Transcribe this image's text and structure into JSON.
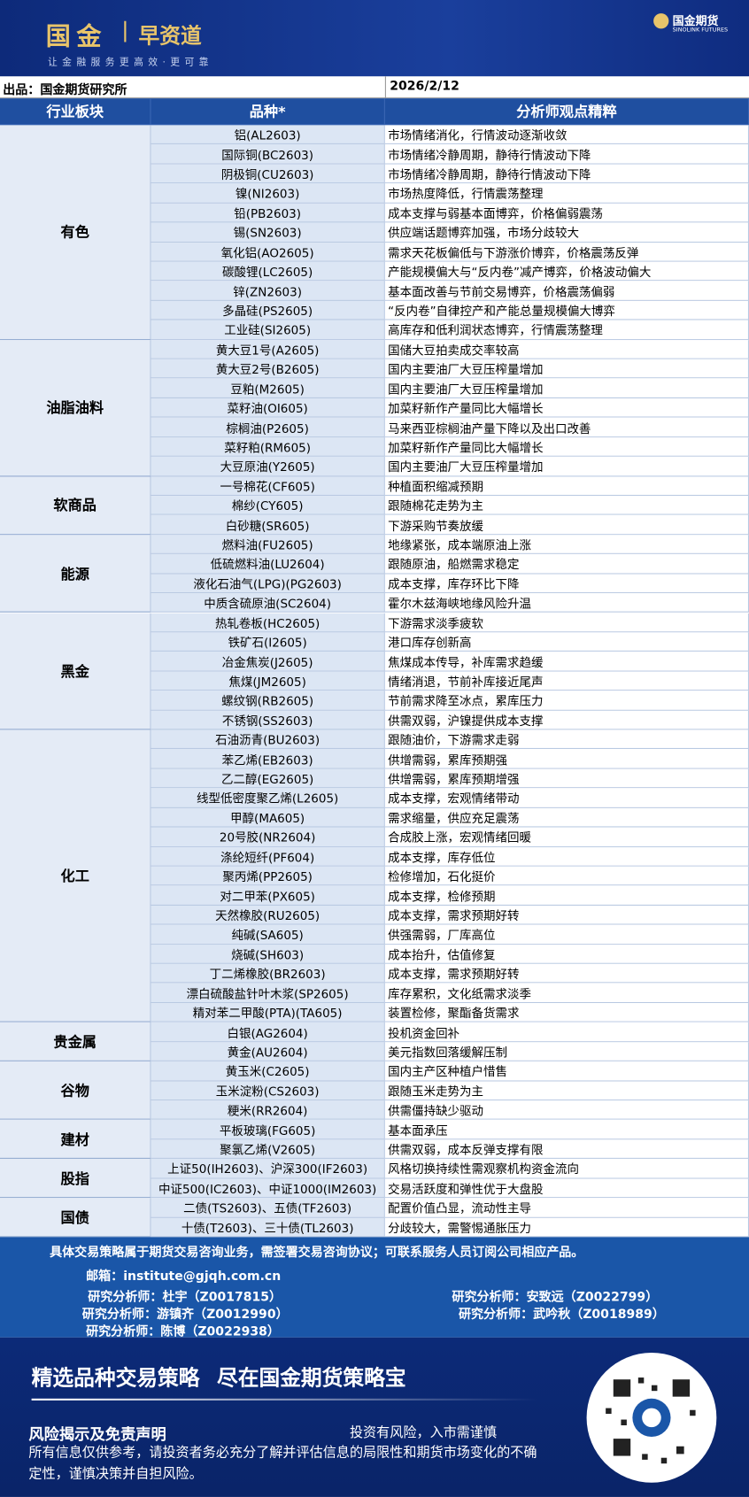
{
  "header": {
    "logo": "国金",
    "product": "早资道",
    "slogan": "让金融服务更高效·更可靠",
    "brand": "国金期货",
    "brand_en": "SINOLINK FUTURES"
  },
  "meta": {
    "producer": "出品：国金期货研究所",
    "date": "2026/2/12"
  },
  "table": {
    "columns": [
      "行业板块",
      "品种*",
      "分析师观点精粹"
    ],
    "groups": [
      {
        "sector": "有色",
        "rows": [
          [
            "铝(AL2603)",
            "市场情绪消化，行情波动逐渐收敛"
          ],
          [
            "国际铜(BC2603)",
            "市场情绪冷静周期，静待行情波动下降"
          ],
          [
            "阴极铜(CU2603)",
            "市场情绪冷静周期，静待行情波动下降"
          ],
          [
            "镍(NI2603)",
            "市场热度降低，行情震荡整理"
          ],
          [
            "铅(PB2603)",
            "成本支撑与弱基本面博弈，价格偏弱震荡"
          ],
          [
            "锡(SN2603)",
            "供应端话题博弈加强，市场分歧较大"
          ],
          [
            "氧化铝(AO2605)",
            "需求天花板偏低与下游涨价博弈，价格震荡反弹"
          ],
          [
            "碳酸锂(LC2605)",
            "产能规模偏大与“反内卷”减产博弈，价格波动偏大"
          ],
          [
            "锌(ZN2603)",
            "基本面改善与节前交易博弈，价格震荡偏弱"
          ],
          [
            "多晶硅(PS2605)",
            "“反内卷”自律控产和产能总量规模偏大博弈"
          ],
          [
            "工业硅(SI2605)",
            "高库存和低利润状态博弈，行情震荡整理"
          ]
        ]
      },
      {
        "sector": "油脂油料",
        "rows": [
          [
            "黄大豆1号(A2605)",
            "国储大豆拍卖成交率较高"
          ],
          [
            "黄大豆2号(B2605)",
            "国内主要油厂大豆压榨量增加"
          ],
          [
            "豆粕(M2605)",
            "国内主要油厂大豆压榨量增加"
          ],
          [
            "菜籽油(OI605)",
            "加菜籽新作产量同比大幅增长"
          ],
          [
            "棕榈油(P2605)",
            "马来西亚棕榈油产量下降以及出口改善"
          ],
          [
            "菜籽粕(RM605)",
            "加菜籽新作产量同比大幅增长"
          ],
          [
            "大豆原油(Y2605)",
            "国内主要油厂大豆压榨量增加"
          ]
        ]
      },
      {
        "sector": "软商品",
        "rows": [
          [
            "一号棉花(CF605)",
            "种植面积缩减预期"
          ],
          [
            "棉纱(CY605)",
            "跟随棉花走势为主"
          ],
          [
            "白砂糖(SR605)",
            "下游采购节奏放缓"
          ]
        ]
      },
      {
        "sector": "能源",
        "rows": [
          [
            "燃料油(FU2605)",
            "地缘紧张，成本端原油上涨"
          ],
          [
            "低硫燃料油(LU2604)",
            "跟随原油，船燃需求稳定"
          ],
          [
            "液化石油气(LPG)(PG2603)",
            "成本支撑，库存环比下降"
          ],
          [
            "中质含硫原油(SC2604)",
            "霍尔木兹海峡地缘风险升温"
          ]
        ]
      },
      {
        "sector": "黑金",
        "rows": [
          [
            "热轧卷板(HC2605)",
            "下游需求淡季疲软"
          ],
          [
            "铁矿石(I2605)",
            "港口库存创新高"
          ],
          [
            "冶金焦炭(J2605)",
            "焦煤成本传导，补库需求趋缓"
          ],
          [
            "焦煤(JM2605)",
            "情绪消退，节前补库接近尾声"
          ],
          [
            "螺纹钢(RB2605)",
            "节前需求降至冰点，累库压力"
          ],
          [
            "不锈钢(SS2603)",
            "供需双弱，沪镍提供成本支撑"
          ]
        ]
      },
      {
        "sector": "化工",
        "rows": [
          [
            "石油沥青(BU2603)",
            "跟随油价，下游需求走弱"
          ],
          [
            "苯乙烯(EB2603)",
            "供增需弱，累库预期强"
          ],
          [
            "乙二醇(EG2605)",
            "供增需弱，累库预期增强"
          ],
          [
            "线型低密度聚乙烯(L2605)",
            "成本支撑，宏观情绪带动"
          ],
          [
            "甲醇(MA605)",
            "需求缩量，供应充足震荡"
          ],
          [
            "20号胶(NR2604)",
            "合成胶上涨，宏观情绪回暖"
          ],
          [
            "涤纶短纤(PF604)",
            "成本支撑，库存低位"
          ],
          [
            "聚丙烯(PP2605)",
            "检修增加，石化挺价"
          ],
          [
            "对二甲苯(PX605)",
            "成本支撑，检修预期"
          ],
          [
            "天然橡胶(RU2605)",
            "成本支撑，需求预期好转"
          ],
          [
            "纯碱(SA605)",
            "供强需弱，厂库高位"
          ],
          [
            "烧碱(SH603)",
            "成本抬升，估值修复"
          ],
          [
            "丁二烯橡胶(BR2603)",
            "成本支撑，需求预期好转"
          ],
          [
            "漂白硫酸盐针叶木浆(SP2605)",
            "库存累积，文化纸需求淡季"
          ],
          [
            "精对苯二甲酸(PTA)(TA605)",
            "装置检修，聚酯备货需求"
          ]
        ]
      },
      {
        "sector": "贵金属",
        "rows": [
          [
            "白银(AG2604)",
            "投机资金回补"
          ],
          [
            "黄金(AU2604)",
            "美元指数回落缓解压制"
          ]
        ]
      },
      {
        "sector": "谷物",
        "rows": [
          [
            "黄玉米(C2605)",
            "国内主产区种植户惜售"
          ],
          [
            "玉米淀粉(CS2603)",
            "跟随玉米走势为主"
          ],
          [
            "粳米(RR2604)",
            "供需僵持缺少驱动"
          ]
        ]
      },
      {
        "sector": "建材",
        "rows": [
          [
            "平板玻璃(FG605)",
            "基本面承压"
          ],
          [
            "聚氯乙烯(V2605)",
            "供需双弱，成本反弹支撑有限"
          ]
        ]
      },
      {
        "sector": "股指",
        "rows": [
          [
            "上证50(IH2603)、沪深300(IF2603)",
            "风格切换持续性需观察机构资金流向"
          ],
          [
            "中证500(IC2603)、中证1000(IM2603)",
            "交易活跃度和弹性优于大盘股"
          ]
        ]
      },
      {
        "sector": "国债",
        "rows": [
          [
            "二债(TS2603)、五债(TF2603)",
            "配置价值凸显，流动性主导"
          ],
          [
            "十债(T2603)、三十债(TL2603)",
            "分歧较大，需警惕通胀压力"
          ]
        ]
      }
    ]
  },
  "footer": {
    "notice": "具体交易策略属于期货交易咨询业务，需签署交易咨询协议；可联系服务人员订阅公司相应产品。",
    "email": "邮箱：institute@gjqh.com.cn",
    "analysts": [
      "研究分析师：杜宇（Z0017815）",
      "研究分析师：安致远（Z0022799）",
      "研究分析师：游镇齐（Z0012990）",
      "研究分析师：武吟秋（Z0018989）",
      "研究分析师：陈博（Z0022938）"
    ]
  },
  "banner": {
    "headline1": "精选品种交易策略",
    "headline2": "尽在国金期货策略宝",
    "risk_title": "风险揭示及免责声明",
    "risk_tip": "投资有风险，入市需谨慎",
    "risk_text": "所有信息仅供参考，请投资者务必充分了解并评估信息的局限性和期货市场变化的不确定性，谨慎决策并自担风险。"
  }
}
